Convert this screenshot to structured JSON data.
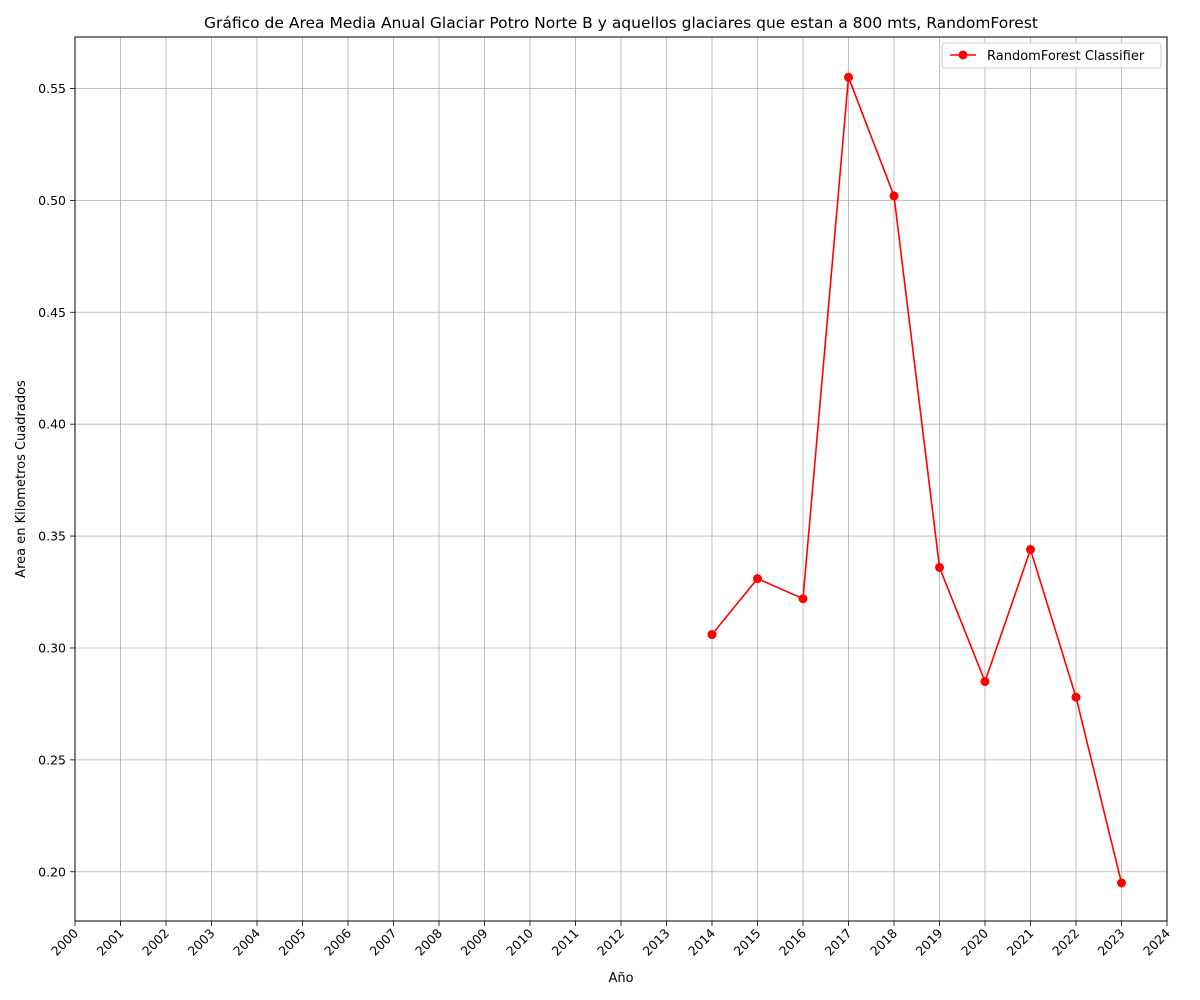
{
  "chart_data": {
    "type": "line",
    "title": "Gráfico de Area Media Anual Glaciar Potro Norte B y aquellos glaciares que estan a 800 mts, RandomForest",
    "xlabel": "Año",
    "ylabel": "Area en Kilometros Cuadrados",
    "xlim": [
      2000,
      2024
    ],
    "ylim": [
      0.178,
      0.573
    ],
    "xticks": [
      "2000",
      "2001",
      "2002",
      "2003",
      "2004",
      "2005",
      "2006",
      "2007",
      "2008",
      "2009",
      "2010",
      "2011",
      "2012",
      "2013",
      "2014",
      "2015",
      "2016",
      "2017",
      "2018",
      "2019",
      "2020",
      "2021",
      "2022",
      "2023",
      "2024"
    ],
    "yticks": [
      "0.20",
      "0.25",
      "0.30",
      "0.35",
      "0.40",
      "0.45",
      "0.50",
      "0.55"
    ],
    "grid": true,
    "legend_position": "top-right",
    "series": [
      {
        "name": "RandomForest Classifier",
        "color": "#ff0000",
        "x": [
          2014,
          2015,
          2016,
          2017,
          2018,
          2019,
          2020,
          2021,
          2022,
          2023
        ],
        "y": [
          0.306,
          0.331,
          0.322,
          0.555,
          0.502,
          0.336,
          0.285,
          0.344,
          0.278,
          0.195
        ]
      }
    ]
  }
}
